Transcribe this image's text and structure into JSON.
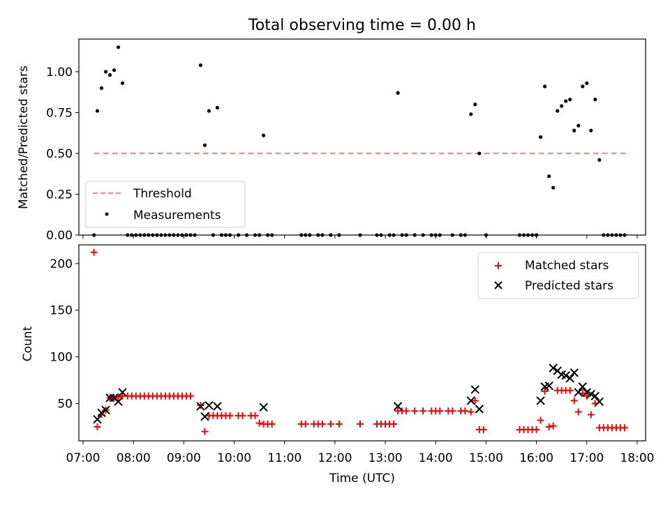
{
  "figure": {
    "title": "Total observing time = 0.00 h",
    "xlabel": "Time (UTC)"
  },
  "chart_data": [
    {
      "type": "scatter",
      "ylabel": "Matched/Predicted stars",
      "ylim": [
        0,
        1.2
      ],
      "yticks": [
        "0.00",
        "0.25",
        "0.50",
        "0.75",
        "1.00"
      ],
      "xlim": [
        "06:55",
        "18:10"
      ],
      "xticks": [
        "07:00",
        "08:00",
        "09:00",
        "10:00",
        "11:00",
        "12:00",
        "13:00",
        "14:00",
        "15:00",
        "16:00",
        "17:00",
        "18:00"
      ],
      "threshold": {
        "name": "Threshold",
        "value": 0.5,
        "x_range": [
          "07:13",
          "17:51"
        ],
        "color": "#ff7f7f"
      },
      "legend": {
        "position": "lower-left",
        "entries": [
          "Threshold",
          "Measurements"
        ]
      },
      "series": [
        {
          "name": "Measurements",
          "color": "#000000",
          "points": [
            [
              "07:13",
              0
            ],
            [
              "07:17",
              0.76
            ],
            [
              "07:22",
              0.9
            ],
            [
              "07:27",
              1.0
            ],
            [
              "07:32",
              0.98
            ],
            [
              "07:37",
              1.01
            ],
            [
              "07:42",
              1.15
            ],
            [
              "07:47",
              0.93
            ],
            [
              "07:53",
              0
            ],
            [
              "07:58",
              0
            ],
            [
              "08:03",
              0
            ],
            [
              "08:08",
              0
            ],
            [
              "08:13",
              0
            ],
            [
              "08:18",
              0
            ],
            [
              "08:23",
              0
            ],
            [
              "08:28",
              0
            ],
            [
              "08:33",
              0
            ],
            [
              "08:38",
              0
            ],
            [
              "08:43",
              0
            ],
            [
              "08:48",
              0
            ],
            [
              "08:53",
              0
            ],
            [
              "08:58",
              0
            ],
            [
              "09:03",
              0
            ],
            [
              "09:08",
              0
            ],
            [
              "09:13",
              0
            ],
            [
              "09:20",
              1.04
            ],
            [
              "09:25",
              0.55
            ],
            [
              "09:30",
              0.76
            ],
            [
              "09:40",
              0.78
            ],
            [
              "09:35",
              0
            ],
            [
              "09:45",
              0
            ],
            [
              "09:50",
              0
            ],
            [
              "09:55",
              0
            ],
            [
              "10:05",
              0
            ],
            [
              "10:15",
              0
            ],
            [
              "10:25",
              0
            ],
            [
              "10:30",
              0
            ],
            [
              "10:40",
              0
            ],
            [
              "10:45",
              0
            ],
            [
              "10:35",
              0.61
            ],
            [
              "11:20",
              0
            ],
            [
              "11:25",
              0
            ],
            [
              "11:30",
              0
            ],
            [
              "11:40",
              0
            ],
            [
              "11:45",
              0
            ],
            [
              "11:55",
              0
            ],
            [
              "12:05",
              0
            ],
            [
              "12:30",
              0
            ],
            [
              "12:50",
              0
            ],
            [
              "12:55",
              0
            ],
            [
              "13:05",
              0
            ],
            [
              "13:10",
              0
            ],
            [
              "13:20",
              0
            ],
            [
              "13:25",
              0
            ],
            [
              "13:35",
              0
            ],
            [
              "13:45",
              0
            ],
            [
              "13:55",
              0
            ],
            [
              "14:00",
              0
            ],
            [
              "14:05",
              0
            ],
            [
              "14:20",
              0
            ],
            [
              "14:30",
              0
            ],
            [
              "14:35",
              0
            ],
            [
              "15:00",
              0
            ],
            [
              "13:15",
              0.87
            ],
            [
              "14:42",
              0.74
            ],
            [
              "14:47",
              0.8
            ],
            [
              "14:52",
              0.5
            ],
            [
              "15:40",
              0
            ],
            [
              "15:45",
              0
            ],
            [
              "15:50",
              0
            ],
            [
              "15:55",
              0
            ],
            [
              "16:00",
              0
            ],
            [
              "16:05",
              0.6
            ],
            [
              "16:10",
              0.91
            ],
            [
              "16:15",
              0.36
            ],
            [
              "16:20",
              0.29
            ],
            [
              "16:25",
              0.76
            ],
            [
              "16:30",
              0.79
            ],
            [
              "16:35",
              0.82
            ],
            [
              "16:40",
              0.83
            ],
            [
              "16:45",
              0.64
            ],
            [
              "16:50",
              0.67
            ],
            [
              "16:55",
              0.91
            ],
            [
              "17:00",
              0.93
            ],
            [
              "17:05",
              0.64
            ],
            [
              "17:10",
              0.83
            ],
            [
              "17:15",
              0.46
            ],
            [
              "17:20",
              0
            ],
            [
              "17:25",
              0
            ],
            [
              "17:30",
              0
            ],
            [
              "17:35",
              0
            ],
            [
              "17:40",
              0
            ],
            [
              "17:45",
              0
            ]
          ]
        }
      ]
    },
    {
      "type": "scatter",
      "ylabel": "Count",
      "ylim": [
        10,
        220
      ],
      "yticks": [
        "50",
        "100",
        "150",
        "200"
      ],
      "xlim": [
        "06:55",
        "18:10"
      ],
      "xticks": [
        "07:00",
        "08:00",
        "09:00",
        "10:00",
        "11:00",
        "12:00",
        "13:00",
        "14:00",
        "15:00",
        "16:00",
        "17:00",
        "18:00"
      ],
      "legend": {
        "position": "upper-right",
        "entries": [
          "Matched stars",
          "Predicted stars"
        ]
      },
      "series": [
        {
          "name": "Matched stars",
          "marker": "+",
          "color": "#ff0000",
          "points": [
            [
              "07:13",
              212
            ],
            [
              "07:17",
              25
            ],
            [
              "07:22",
              38
            ],
            [
              "07:27",
              43
            ],
            [
              "07:32",
              56
            ],
            [
              "07:37",
              56
            ],
            [
              "07:42",
              57
            ],
            [
              "07:47",
              58
            ],
            [
              "07:53",
              58
            ],
            [
              "07:58",
              58
            ],
            [
              "08:03",
              58
            ],
            [
              "08:08",
              58
            ],
            [
              "08:13",
              58
            ],
            [
              "08:18",
              58
            ],
            [
              "08:23",
              58
            ],
            [
              "08:28",
              58
            ],
            [
              "08:33",
              58
            ],
            [
              "08:38",
              58
            ],
            [
              "08:43",
              58
            ],
            [
              "08:48",
              58
            ],
            [
              "08:53",
              58
            ],
            [
              "08:58",
              58
            ],
            [
              "09:03",
              58
            ],
            [
              "09:08",
              58
            ],
            [
              "09:20",
              48
            ],
            [
              "09:25",
              20
            ],
            [
              "09:30",
              37
            ],
            [
              "09:35",
              37
            ],
            [
              "09:40",
              37
            ],
            [
              "09:45",
              37
            ],
            [
              "09:50",
              37
            ],
            [
              "09:55",
              37
            ],
            [
              "10:05",
              37
            ],
            [
              "10:10",
              37
            ],
            [
              "10:20",
              37
            ],
            [
              "10:25",
              37
            ],
            [
              "10:30",
              29
            ],
            [
              "10:35",
              28
            ],
            [
              "10:40",
              28
            ],
            [
              "10:45",
              28
            ],
            [
              "11:20",
              28
            ],
            [
              "11:25",
              28
            ],
            [
              "11:35",
              28
            ],
            [
              "11:40",
              28
            ],
            [
              "11:45",
              28
            ],
            [
              "11:55",
              28
            ],
            [
              "12:05",
              28
            ],
            [
              "12:30",
              28
            ],
            [
              "12:50",
              28
            ],
            [
              "12:55",
              28
            ],
            [
              "13:00",
              28
            ],
            [
              "13:05",
              28
            ],
            [
              "13:10",
              28
            ],
            [
              "13:15",
              42
            ],
            [
              "13:20",
              42
            ],
            [
              "13:25",
              42
            ],
            [
              "13:35",
              42
            ],
            [
              "13:45",
              42
            ],
            [
              "13:55",
              42
            ],
            [
              "14:00",
              42
            ],
            [
              "14:05",
              42
            ],
            [
              "14:15",
              42
            ],
            [
              "14:20",
              42
            ],
            [
              "14:30",
              42
            ],
            [
              "14:35",
              42
            ],
            [
              "14:42",
              41
            ],
            [
              "14:47",
              53
            ],
            [
              "14:52",
              22
            ],
            [
              "14:57",
              22
            ],
            [
              "15:40",
              22
            ],
            [
              "15:45",
              22
            ],
            [
              "15:50",
              22
            ],
            [
              "15:55",
              22
            ],
            [
              "16:00",
              22
            ],
            [
              "16:05",
              32
            ],
            [
              "16:10",
              63
            ],
            [
              "16:15",
              25
            ],
            [
              "16:20",
              26
            ],
            [
              "16:25",
              64
            ],
            [
              "16:30",
              64
            ],
            [
              "16:35",
              64
            ],
            [
              "16:40",
              64
            ],
            [
              "16:45",
              53
            ],
            [
              "16:50",
              41
            ],
            [
              "16:55",
              61
            ],
            [
              "17:00",
              58
            ],
            [
              "17:05",
              38
            ],
            [
              "17:10",
              50
            ],
            [
              "17:15",
              24
            ],
            [
              "17:20",
              24
            ],
            [
              "17:25",
              24
            ],
            [
              "17:30",
              24
            ],
            [
              "17:35",
              24
            ],
            [
              "17:40",
              24
            ],
            [
              "17:45",
              24
            ]
          ]
        },
        {
          "name": "Predicted stars",
          "marker": "x",
          "color": "#000000",
          "points": [
            [
              "07:17",
              33
            ],
            [
              "07:22",
              40
            ],
            [
              "07:27",
              43
            ],
            [
              "07:32",
              56
            ],
            [
              "07:37",
              56
            ],
            [
              "07:42",
              52
            ],
            [
              "07:47",
              62
            ],
            [
              "09:20",
              47
            ],
            [
              "09:25",
              36
            ],
            [
              "09:30",
              48
            ],
            [
              "09:40",
              47
            ],
            [
              "10:35",
              46
            ],
            [
              "13:15",
              47
            ],
            [
              "14:42",
              53
            ],
            [
              "14:47",
              65
            ],
            [
              "14:52",
              44
            ],
            [
              "16:05",
              53
            ],
            [
              "16:10",
              68
            ],
            [
              "16:15",
              69
            ],
            [
              "16:20",
              88
            ],
            [
              "16:25",
              85
            ],
            [
              "16:30",
              81
            ],
            [
              "16:35",
              80
            ],
            [
              "16:40",
              77
            ],
            [
              "16:45",
              83
            ],
            [
              "16:50",
              62
            ],
            [
              "16:55",
              68
            ],
            [
              "17:00",
              62
            ],
            [
              "17:05",
              60
            ],
            [
              "17:10",
              58
            ],
            [
              "17:15",
              52
            ]
          ]
        }
      ]
    }
  ]
}
